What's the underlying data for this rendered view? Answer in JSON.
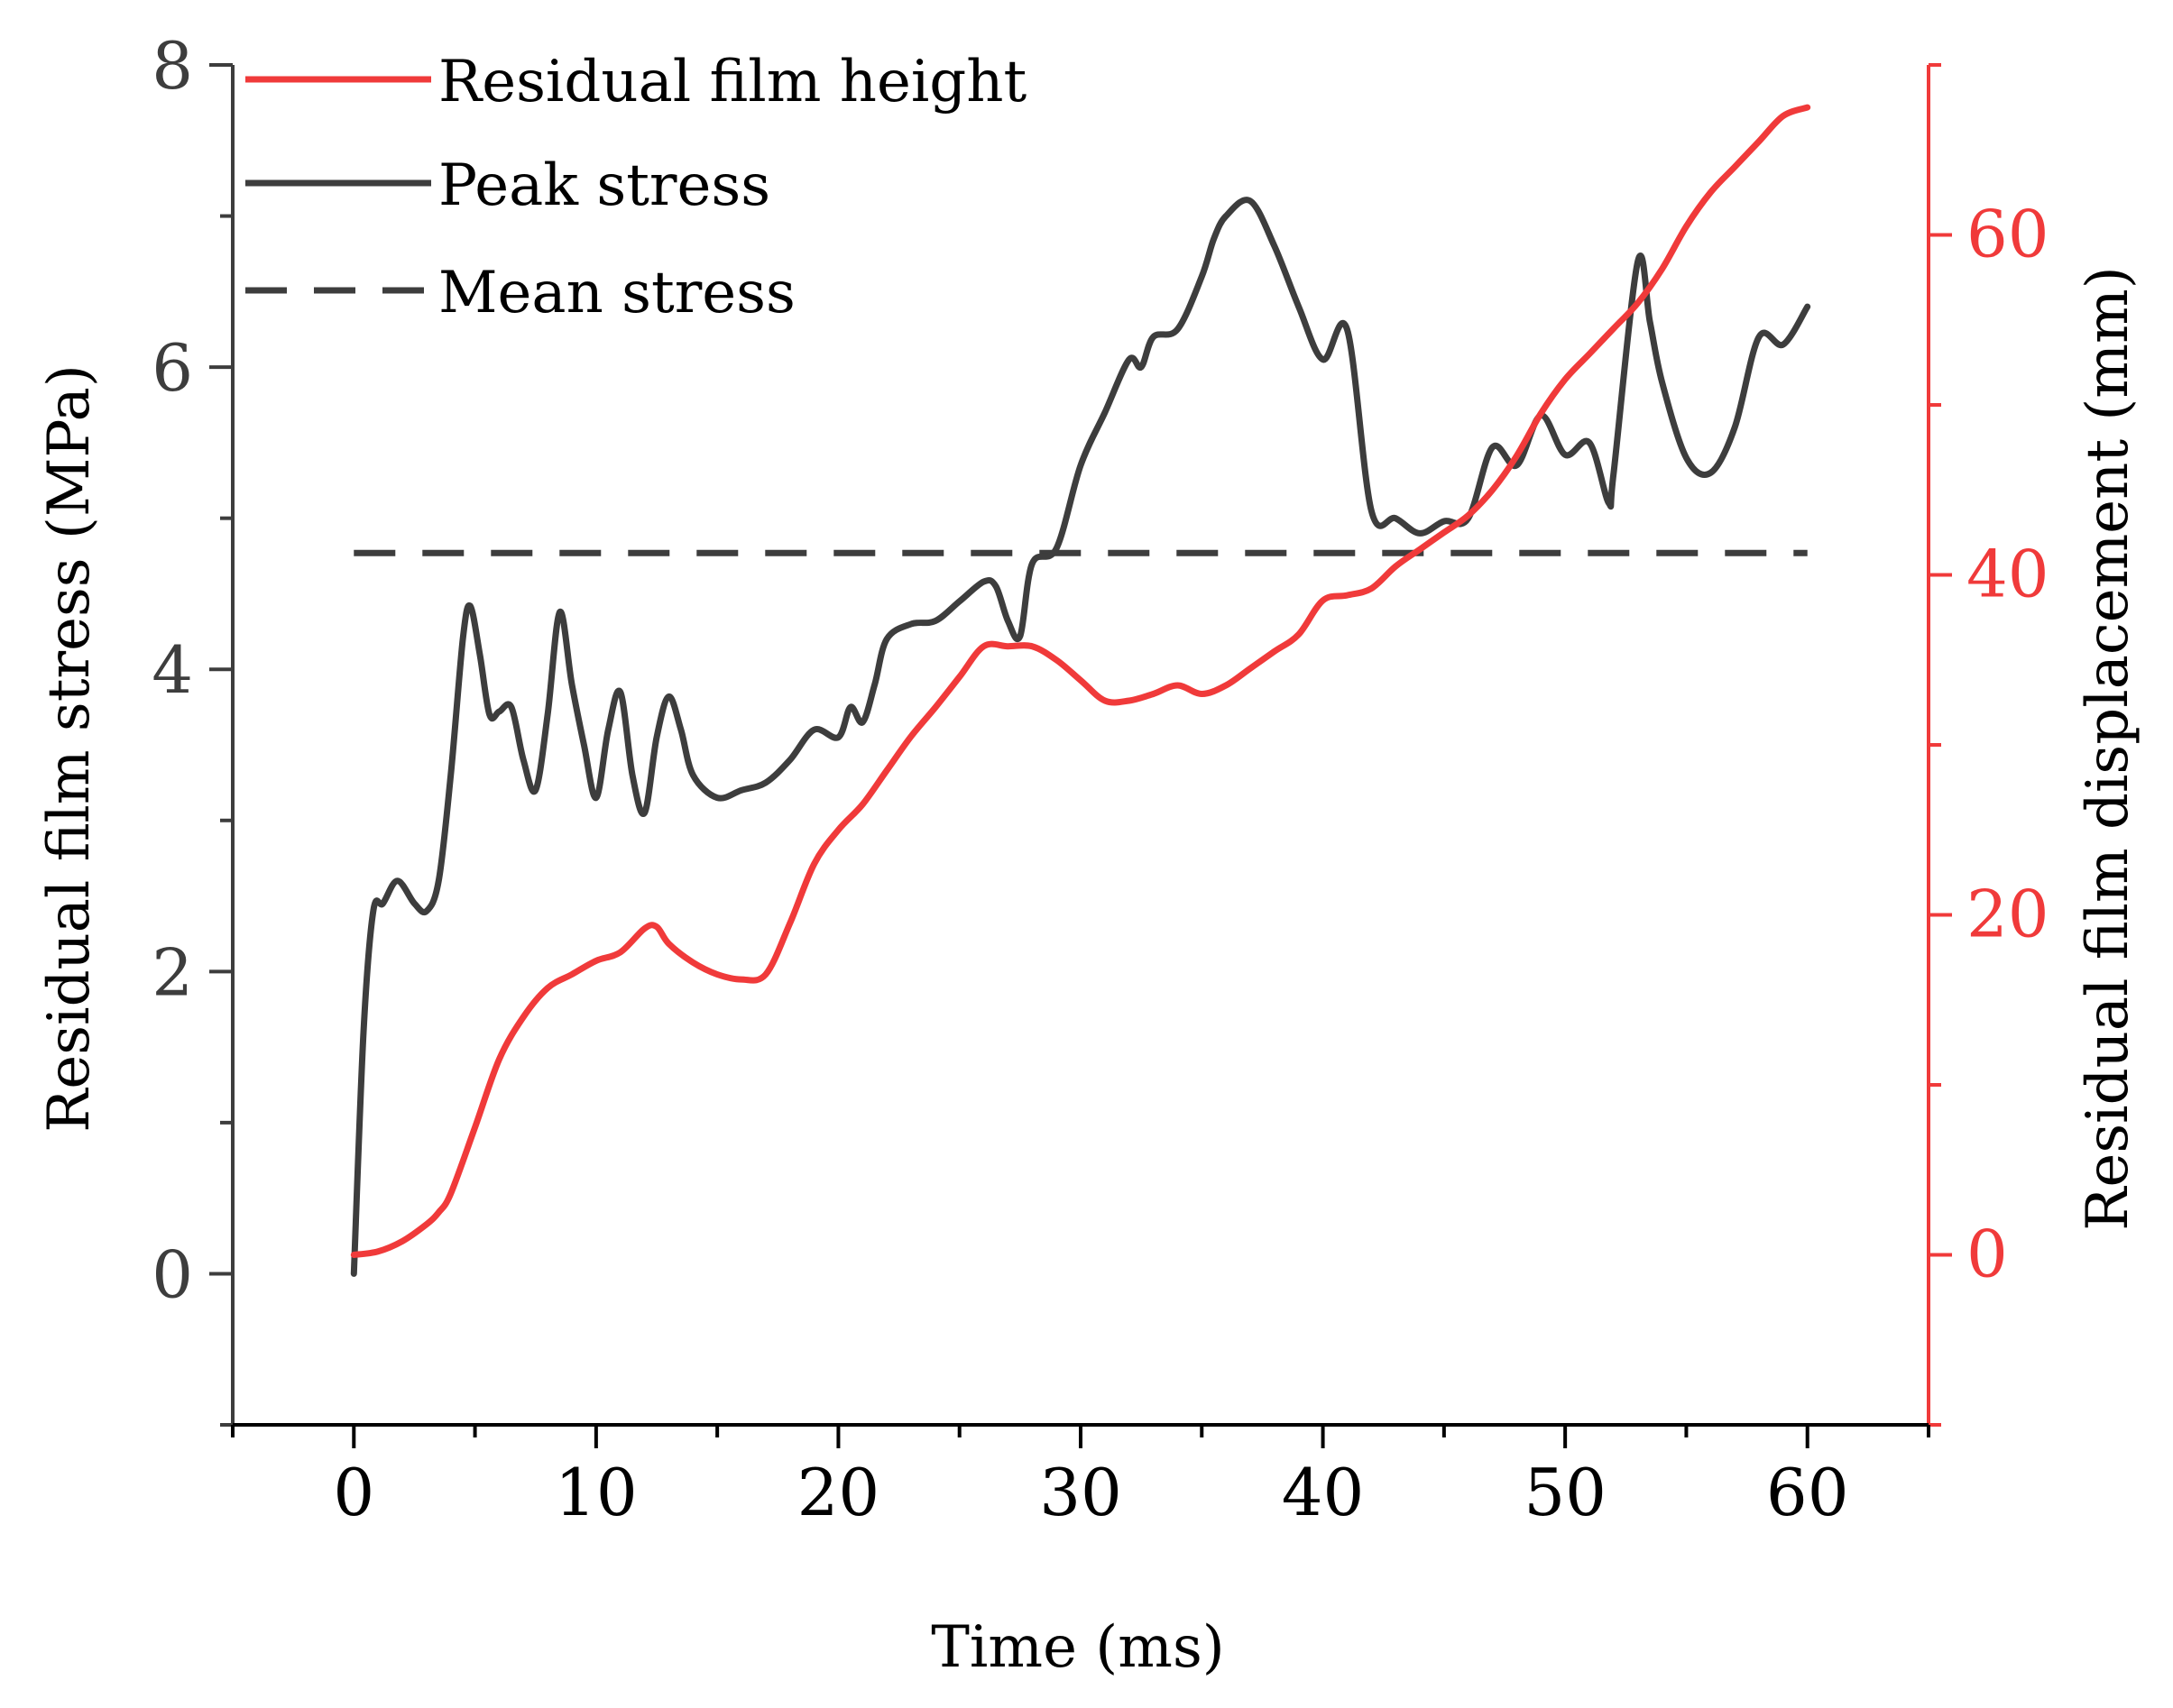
{
  "chart_data": {
    "type": "line",
    "title": "",
    "xlabel": "Time (ms)",
    "ylabel_left": "Residual film stress (MPa)",
    "ylabel_right": "Residual film displacement (mm)",
    "xlim": [
      -5,
      65
    ],
    "ylim_left": [
      -1,
      8
    ],
    "ylim_right": [
      -10,
      70
    ],
    "x_ticks": [
      0,
      10,
      20,
      30,
      40,
      50,
      60
    ],
    "y_left_ticks": [
      0,
      2,
      4,
      6,
      8
    ],
    "y_right_ticks": [
      0,
      20,
      40,
      60
    ],
    "grid": false,
    "legend_position": "top-left",
    "series": [
      {
        "name": "Residual film height",
        "axis": "right",
        "color": "#f03a3a",
        "style": "solid",
        "points": [
          [
            0,
            0
          ],
          [
            1,
            0.2
          ],
          [
            2,
            0.8
          ],
          [
            3,
            1.8
          ],
          [
            3.5,
            2.5
          ],
          [
            4,
            3.6
          ],
          [
            5,
            7.5
          ],
          [
            6,
            11.5
          ],
          [
            7,
            14
          ],
          [
            8,
            15.7
          ],
          [
            9,
            16.5
          ],
          [
            10,
            17.3
          ],
          [
            11,
            17.8
          ],
          [
            12,
            19.2
          ],
          [
            12.5,
            19.3
          ],
          [
            13,
            18.3
          ],
          [
            14,
            17.2
          ],
          [
            15,
            16.5
          ],
          [
            16,
            16.2
          ],
          [
            17,
            16.5
          ],
          [
            18,
            19.5
          ],
          [
            19,
            23
          ],
          [
            20,
            25
          ],
          [
            21,
            26.5
          ],
          [
            22,
            28.5
          ],
          [
            23,
            30.5
          ],
          [
            24,
            32.2
          ],
          [
            25,
            34
          ],
          [
            26,
            35.8
          ],
          [
            27,
            35.8
          ],
          [
            28,
            35.8
          ],
          [
            29,
            35
          ],
          [
            30,
            33.8
          ],
          [
            31,
            32.6
          ],
          [
            32,
            32.6
          ],
          [
            33,
            33
          ],
          [
            34,
            33.5
          ],
          [
            35,
            33
          ],
          [
            36,
            33.5
          ],
          [
            37,
            34.5
          ],
          [
            38,
            35.5
          ],
          [
            39,
            36.5
          ],
          [
            40,
            38.5
          ],
          [
            41,
            38.8
          ],
          [
            42,
            39.2
          ],
          [
            43,
            40.5
          ],
          [
            44,
            41.5
          ],
          [
            45,
            42.5
          ],
          [
            46,
            43.5
          ],
          [
            47,
            45
          ],
          [
            48,
            47
          ],
          [
            49,
            49.5
          ],
          [
            50,
            51.5
          ],
          [
            51,
            53
          ],
          [
            52,
            54.5
          ],
          [
            53,
            56
          ],
          [
            54,
            58
          ],
          [
            55,
            60.5
          ],
          [
            56,
            62.5
          ],
          [
            57,
            64
          ],
          [
            58,
            65.5
          ],
          [
            59,
            67
          ],
          [
            60,
            67.5
          ]
        ]
      },
      {
        "name": "Peak stress",
        "axis": "left",
        "color": "#3d3d3d",
        "style": "solid",
        "points": [
          [
            0,
            0
          ],
          [
            0.4,
            1.6
          ],
          [
            0.8,
            2.4
          ],
          [
            1.2,
            2.45
          ],
          [
            1.8,
            2.6
          ],
          [
            2.5,
            2.45
          ],
          [
            3,
            2.4
          ],
          [
            3.5,
            2.6
          ],
          [
            4,
            3.3
          ],
          [
            4.5,
            4.2
          ],
          [
            4.8,
            4.42
          ],
          [
            5.2,
            4.1
          ],
          [
            5.6,
            3.7
          ],
          [
            6,
            3.72
          ],
          [
            6.5,
            3.75
          ],
          [
            7,
            3.4
          ],
          [
            7.5,
            3.2
          ],
          [
            8,
            3.7
          ],
          [
            8.5,
            4.38
          ],
          [
            9,
            3.9
          ],
          [
            9.5,
            3.5
          ],
          [
            10,
            3.15
          ],
          [
            10.5,
            3.6
          ],
          [
            11,
            3.85
          ],
          [
            11.5,
            3.3
          ],
          [
            12,
            3.05
          ],
          [
            12.5,
            3.55
          ],
          [
            13,
            3.82
          ],
          [
            13.5,
            3.6
          ],
          [
            14,
            3.3
          ],
          [
            15,
            3.15
          ],
          [
            16,
            3.2
          ],
          [
            17,
            3.25
          ],
          [
            18,
            3.4
          ],
          [
            19,
            3.6
          ],
          [
            20,
            3.55
          ],
          [
            20.5,
            3.75
          ],
          [
            21,
            3.65
          ],
          [
            21.5,
            3.9
          ],
          [
            22,
            4.2
          ],
          [
            23,
            4.3
          ],
          [
            24,
            4.32
          ],
          [
            25,
            4.45
          ],
          [
            26,
            4.58
          ],
          [
            26.5,
            4.55
          ],
          [
            27,
            4.32
          ],
          [
            27.5,
            4.22
          ],
          [
            28,
            4.7
          ],
          [
            29,
            4.8
          ],
          [
            30,
            5.35
          ],
          [
            31,
            5.7
          ],
          [
            32,
            6.05
          ],
          [
            32.5,
            6.0
          ],
          [
            33,
            6.2
          ],
          [
            34,
            6.25
          ],
          [
            35,
            6.6
          ],
          [
            35.5,
            6.85
          ],
          [
            36,
            7.0
          ],
          [
            37,
            7.1
          ],
          [
            38,
            6.8
          ],
          [
            39,
            6.4
          ],
          [
            40,
            6.05
          ],
          [
            41,
            6.25
          ],
          [
            42,
            5.05
          ],
          [
            43,
            5.0
          ],
          [
            44,
            4.9
          ],
          [
            45,
            4.98
          ],
          [
            46,
            5.0
          ],
          [
            47,
            5.47
          ],
          [
            48,
            5.35
          ],
          [
            49,
            5.68
          ],
          [
            50,
            5.42
          ],
          [
            51,
            5.5
          ],
          [
            51.8,
            5.1
          ],
          [
            52,
            5.3
          ],
          [
            53,
            6.7
          ],
          [
            53.5,
            6.3
          ],
          [
            54,
            5.9
          ],
          [
            55,
            5.4
          ],
          [
            56,
            5.3
          ],
          [
            57,
            5.6
          ],
          [
            58,
            6.2
          ],
          [
            59,
            6.15
          ],
          [
            60,
            6.4
          ]
        ]
      },
      {
        "name": "Mean stress",
        "axis": "left",
        "color": "#3d3d3d",
        "style": "dashed",
        "points": [
          [
            0,
            4.77
          ],
          [
            60,
            4.77
          ]
        ]
      }
    ]
  },
  "colors": {
    "left_axis": "#3d3d3d",
    "right_axis": "#f03a3a",
    "bottom_axis": "#000000"
  }
}
